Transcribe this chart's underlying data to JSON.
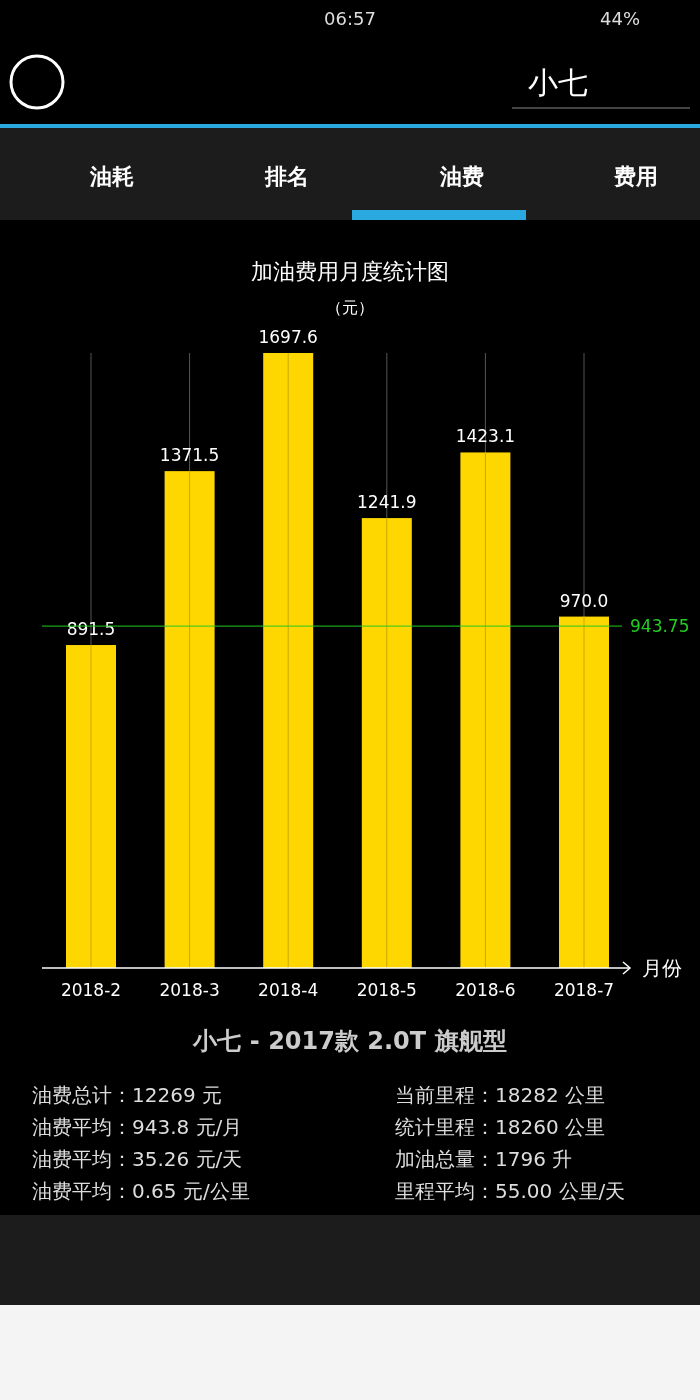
{
  "chart_data": {
    "type": "bar",
    "title": "加油费用月度统计图",
    "subtitle": "（元）",
    "xlabel": "月份",
    "categories": [
      "2018-2",
      "2018-3",
      "2018-4",
      "2018-5",
      "2018-6",
      "2018-7"
    ],
    "values": [
      891.5,
      1371.5,
      1697.6,
      1241.9,
      1423.1,
      970.0
    ],
    "value_labels": [
      "891.5",
      "1371.5",
      "1697.6",
      "1241.9",
      "1423.1",
      "970.0"
    ],
    "color": "#ffd700",
    "grid": "x",
    "ref_lines": [
      {
        "axis": "y",
        "value": 943.75,
        "label": "943.75",
        "color": "#22cc22"
      }
    ],
    "annotations": [
      "06:57",
      "44%",
      "小七",
      "油耗",
      "排名",
      "油费",
      "费用",
      "小七 - 2017款 2.0T 旗舰型",
      "油费总计：12269 元",
      "油费平均：943.8 元/月",
      "油费平均：35.26 元/天",
      "油费平均：0.65 元/公里",
      "当前里程：18282 公里",
      "统计里程：18260 公里",
      "加油总量：1796 升",
      "里程平均：55.00 公里/天"
    ]
  }
}
